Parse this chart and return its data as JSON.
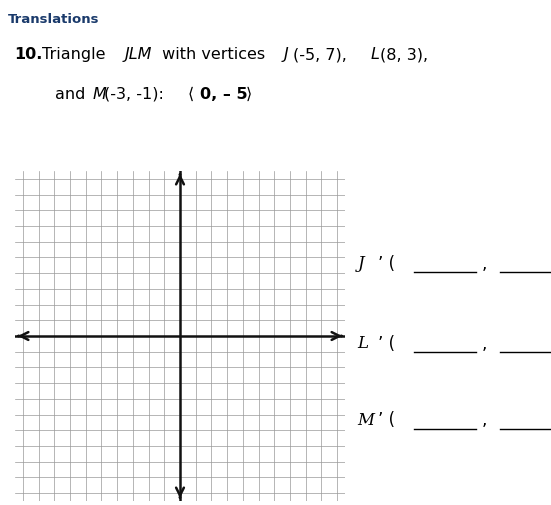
{
  "title": "Translations",
  "title_color": "#1a3a6b",
  "title_fontsize": 9.5,
  "header_bar_color": "#e2e6ee",
  "grid_color": "#999999",
  "axis_color": "#111111",
  "bg_color": "#ffffff",
  "grid_xlim": [
    -10,
    10
  ],
  "grid_ylim": [
    -10,
    10
  ],
  "figure_bg": "#ffffff",
  "problem_fontsize": 11.5,
  "answer_fontsize": 12,
  "answer_letters": [
    "J",
    "L",
    "M"
  ]
}
